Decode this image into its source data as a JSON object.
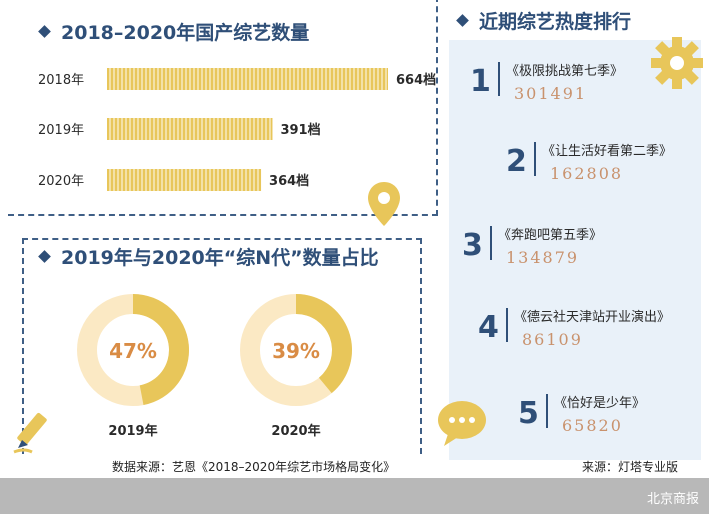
{
  "sections": {
    "counts_title": "2018–2020年国产综艺数量",
    "ratio_title": "2019年与2020年“综N代”数量占比",
    "ranking_title": "近期综艺热度排行"
  },
  "chart_data": [
    {
      "type": "bar",
      "orientation": "horizontal",
      "title": "2018–2020年国产综艺数量",
      "categories": [
        "2018年",
        "2019年",
        "2020年"
      ],
      "values": [
        664,
        391,
        364
      ],
      "value_labels": [
        "664档",
        "391档",
        "364档"
      ],
      "bar_color": "#e8c65a",
      "grid": false
    },
    {
      "type": "pie",
      "variant": "donut",
      "title": "2019年与2020年“综N代”数量占比",
      "charts": [
        {
          "label": "2019年",
          "value": 47,
          "value_label": "47%"
        },
        {
          "label": "2020年",
          "value": 39,
          "value_label": "39%"
        }
      ],
      "filled_color": "#e8c65a",
      "remainder_color": "#fbe9c4",
      "value_text_color": "#d98c45"
    },
    {
      "type": "table",
      "title": "近期综艺热度排行",
      "columns": [
        "rank",
        "show",
        "heat"
      ],
      "rows": [
        {
          "rank": "1",
          "show": "《极限挑战第七季》",
          "heat": "301491"
        },
        {
          "rank": "2",
          "show": "《让生活好看第二季》",
          "heat": "162808"
        },
        {
          "rank": "3",
          "show": "《奔跑吧第五季》",
          "heat": "134879"
        },
        {
          "rank": "4",
          "show": "《德云社天津站开业演出》",
          "heat": "86109"
        },
        {
          "rank": "5",
          "show": "《恰好是少年》",
          "heat": "65820"
        }
      ]
    }
  ],
  "footer": {
    "source_left": "数据来源：艺恩《2018–2020年综艺市场格局变化》",
    "source_right": "来源：灯塔专业版",
    "brand": "北京商报"
  },
  "icons": [
    "diamond-bullet-icon",
    "location-pin-icon",
    "pencil-icon",
    "gear-icon",
    "speech-bubble-icon"
  ],
  "colors": {
    "accent_blue": "#2f4f78",
    "gold": "#e8c65a",
    "panel_bg": "#e9f1f9",
    "heat_value": "#c9926d"
  }
}
